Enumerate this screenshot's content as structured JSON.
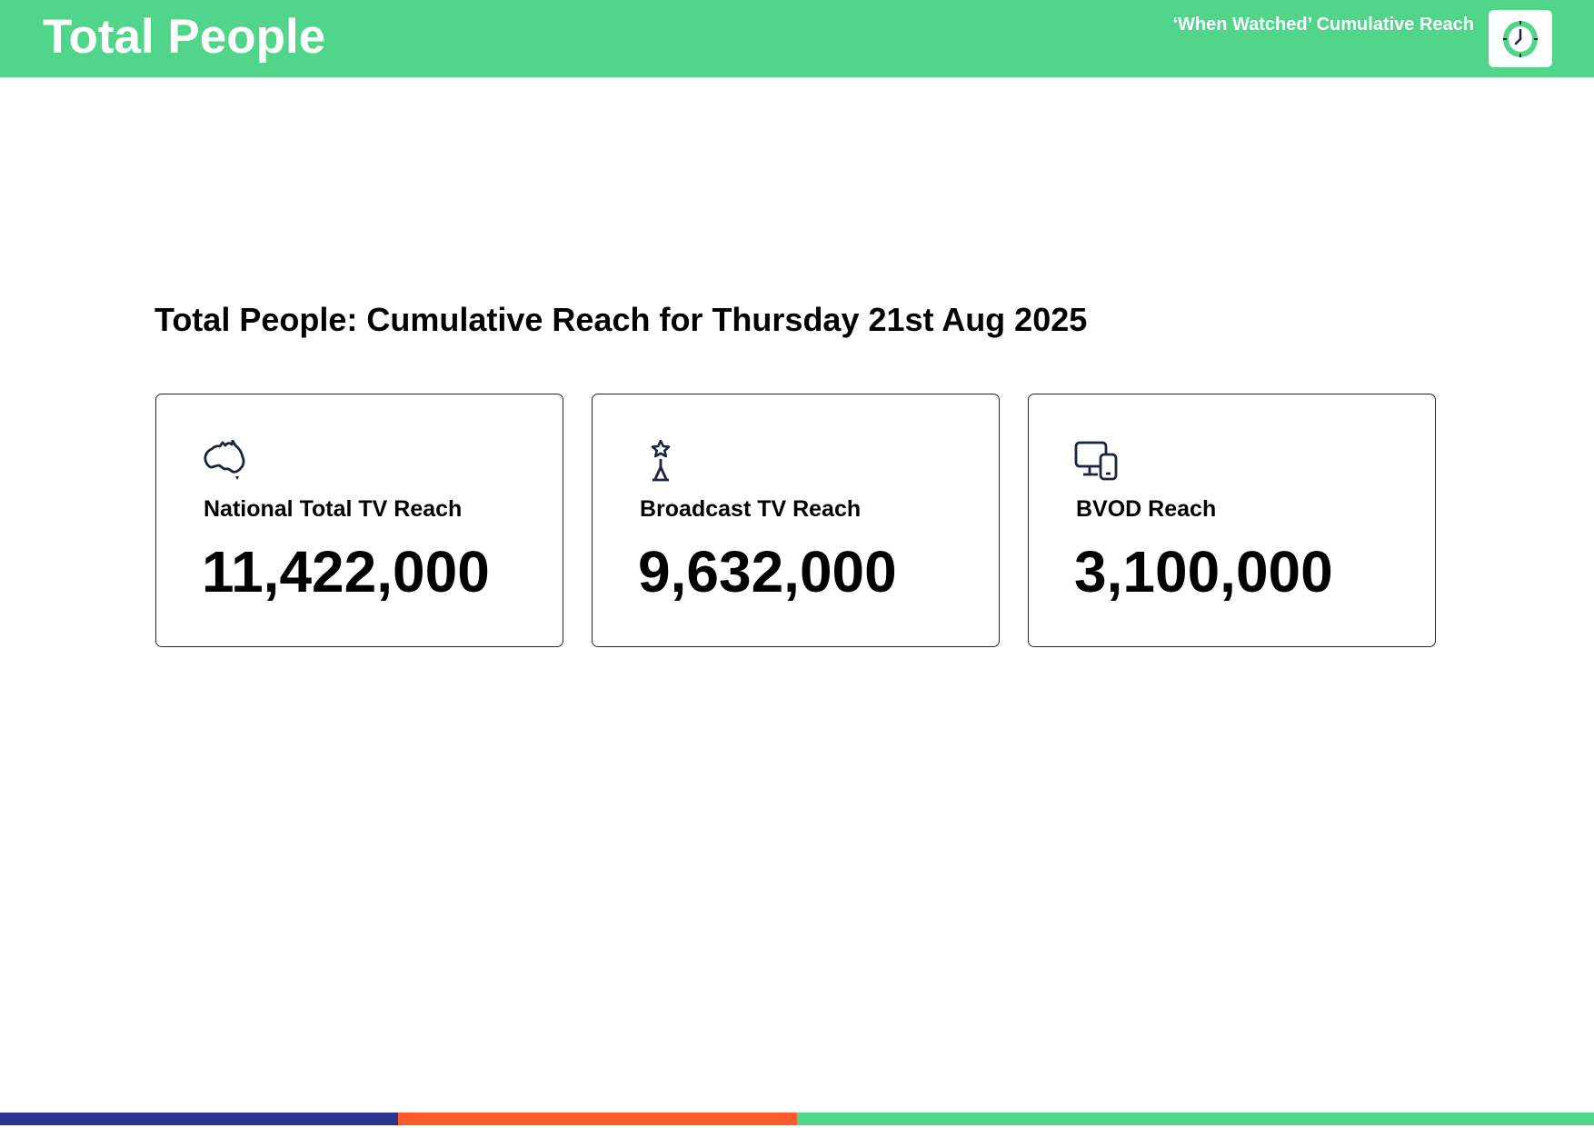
{
  "header": {
    "title": "Total People",
    "subtitle": "‘When Watched’ Cumulative Reach",
    "logo_icon": "clock-icon",
    "background_color": "#50d58a"
  },
  "main": {
    "title": "Total People: Cumulative Reach for Thursday 21st Aug 2025",
    "cards": [
      {
        "icon": "australia-map-icon",
        "label": "National Total TV Reach",
        "value": "11,422,000"
      },
      {
        "icon": "broadcast-tower-icon",
        "label": "Broadcast TV Reach",
        "value": "9,632,000"
      },
      {
        "icon": "devices-icon",
        "label": "BVOD Reach",
        "value": "3,100,000"
      }
    ]
  },
  "footer": {
    "colors": [
      "#2b3590",
      "#ff5a2c",
      "#50d58a"
    ]
  }
}
